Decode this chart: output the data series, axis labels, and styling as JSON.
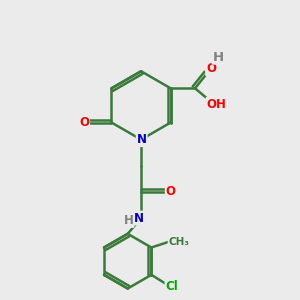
{
  "background_color": "#ebebeb",
  "bond_color": "#3a7a3a",
  "atom_colors": {
    "O": "#ff0000",
    "N": "#0000cc",
    "Cl": "#00aa00",
    "H": "#808080",
    "C": "#3a7a3a"
  }
}
